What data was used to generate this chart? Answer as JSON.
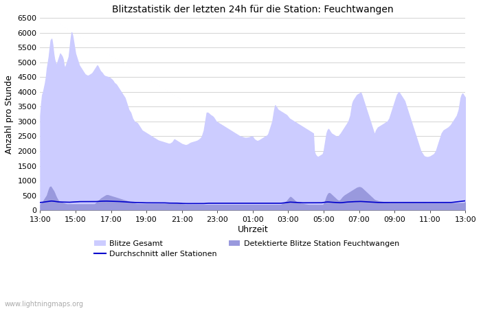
{
  "title": "Blitzstatistik der letzten 24h für die Station: Feuchtwangen",
  "xlabel": "Uhrzeit",
  "ylabel": "Anzahl pro Stunde",
  "watermark": "www.lightningmaps.org",
  "ylim": [
    0,
    6500
  ],
  "yticks": [
    0,
    500,
    1000,
    1500,
    2000,
    2500,
    3000,
    3500,
    4000,
    4500,
    5000,
    5500,
    6000,
    6500
  ],
  "xtick_labels": [
    "13:00",
    "15:00",
    "17:00",
    "19:00",
    "21:00",
    "23:00",
    "01:00",
    "03:00",
    "05:00",
    "07:00",
    "09:00",
    "11:00",
    "13:00"
  ],
  "color_gesamt": "#ccccff",
  "color_station": "#9999dd",
  "color_avg": "#0000cc",
  "legend_gesamt": "Blitze Gesamt",
  "legend_station": "Detektierte Blitze Station Feuchtwangen",
  "legend_avg": "Durchschnitt aller Stationen",
  "gesamt": [
    3200,
    3600,
    3900,
    4000,
    4150,
    4300,
    4500,
    4800,
    5000,
    5200,
    5500,
    5750,
    5800,
    5600,
    5300,
    5100,
    5000,
    4900,
    5000,
    5100,
    5200,
    5300,
    5250,
    5200,
    5100,
    4900,
    4800,
    4900,
    5000,
    5100,
    5200,
    5500,
    5800,
    6020,
    5900,
    5700,
    5500,
    5300,
    5200,
    5100,
    5000,
    4900,
    4850,
    4800,
    4750,
    4700,
    4650,
    4600,
    4580,
    4560,
    4550,
    4560,
    4580,
    4600,
    4620,
    4650,
    4700,
    4750,
    4800,
    4850,
    4900,
    4850,
    4780,
    4720,
    4680,
    4650,
    4600,
    4560,
    4540,
    4530,
    4520,
    4510,
    4500,
    4480,
    4460,
    4430,
    4400,
    4350,
    4300,
    4280,
    4250,
    4200,
    4150,
    4100,
    4050,
    4000,
    3950,
    3900,
    3850,
    3800,
    3700,
    3600,
    3500,
    3400,
    3350,
    3300,
    3200,
    3100,
    3050,
    3000,
    2980,
    2960,
    2950,
    2900,
    2850,
    2800,
    2750,
    2700,
    2680,
    2660,
    2640,
    2620,
    2600,
    2580,
    2560,
    2540,
    2520,
    2500,
    2480,
    2460,
    2440,
    2420,
    2400,
    2380,
    2360,
    2350,
    2340,
    2330,
    2320,
    2310,
    2300,
    2290,
    2280,
    2270,
    2260,
    2250,
    2250,
    2260,
    2280,
    2300,
    2350,
    2400,
    2380,
    2360,
    2340,
    2320,
    2300,
    2280,
    2260,
    2240,
    2230,
    2220,
    2210,
    2200,
    2210,
    2220,
    2240,
    2260,
    2280,
    2290,
    2300,
    2310,
    2320,
    2330,
    2340,
    2350,
    2370,
    2390,
    2420,
    2450,
    2500,
    2600,
    2700,
    2900,
    3100,
    3300,
    3300,
    3280,
    3250,
    3220,
    3200,
    3180,
    3150,
    3100,
    3050,
    3000,
    2980,
    2960,
    2940,
    2920,
    2900,
    2880,
    2860,
    2840,
    2820,
    2800,
    2780,
    2760,
    2740,
    2720,
    2700,
    2680,
    2660,
    2640,
    2620,
    2600,
    2580,
    2560,
    2540,
    2520,
    2500,
    2490,
    2480,
    2470,
    2460,
    2450,
    2450,
    2450,
    2455,
    2460,
    2470,
    2480,
    2490,
    2500,
    2450,
    2400,
    2380,
    2360,
    2340,
    2350,
    2360,
    2380,
    2400,
    2420,
    2440,
    2460,
    2480,
    2500,
    2520,
    2540,
    2600,
    2700,
    2800,
    2900,
    3000,
    3200,
    3400,
    3550,
    3500,
    3450,
    3400,
    3380,
    3360,
    3340,
    3320,
    3300,
    3280,
    3260,
    3240,
    3220,
    3180,
    3140,
    3100,
    3080,
    3060,
    3040,
    3020,
    3000,
    2980,
    2960,
    2940,
    2920,
    2900,
    2880,
    2860,
    2840,
    2820,
    2800,
    2780,
    2760,
    2740,
    2720,
    2700,
    2680,
    2660,
    2640,
    2620,
    2600,
    2000,
    1900,
    1850,
    1820,
    1800,
    1820,
    1840,
    1860,
    1880,
    1900,
    2000,
    2200,
    2400,
    2600,
    2700,
    2750,
    2700,
    2650,
    2600,
    2580,
    2560,
    2540,
    2520,
    2500,
    2490,
    2480,
    2520,
    2560,
    2600,
    2650,
    2700,
    2750,
    2800,
    2850,
    2900,
    2950,
    3000,
    3100,
    3200,
    3400,
    3600,
    3700,
    3750,
    3800,
    3850,
    3900,
    3920,
    3940,
    3960,
    3980,
    3900,
    3800,
    3700,
    3600,
    3500,
    3400,
    3300,
    3200,
    3100,
    3000,
    2900,
    2800,
    2700,
    2600,
    2600,
    2700,
    2750,
    2800,
    2820,
    2840,
    2860,
    2880,
    2900,
    2920,
    2940,
    2960,
    2980,
    3000,
    3050,
    3100,
    3200,
    3300,
    3400,
    3500,
    3600,
    3700,
    3800,
    3900,
    3950,
    4000,
    3950,
    3900,
    3850,
    3800,
    3750,
    3700,
    3600,
    3500,
    3400,
    3300,
    3200,
    3100,
    3000,
    2900,
    2800,
    2700,
    2600,
    2500,
    2400,
    2300,
    2200,
    2100,
    2000,
    1950,
    1900,
    1850,
    1820,
    1810,
    1800,
    1800,
    1800,
    1810,
    1820,
    1840,
    1860,
    1880,
    1900,
    1950,
    2000,
    2100,
    2200,
    2300,
    2400,
    2500,
    2600,
    2650,
    2700,
    2720,
    2740,
    2760,
    2780,
    2800,
    2830,
    2860,
    2900,
    2950,
    3000,
    3050,
    3100,
    3150,
    3200,
    3300,
    3400,
    3600,
    3800,
    3900,
    3950,
    3900,
    3850,
    3800
  ],
  "station": [
    200,
    220,
    260,
    300,
    350,
    400,
    450,
    500,
    600,
    700,
    780,
    800,
    750,
    700,
    650,
    580,
    500,
    430,
    370,
    320,
    290,
    270,
    260,
    250,
    240,
    230,
    220,
    210,
    200,
    200,
    200,
    200,
    200,
    200,
    200,
    200,
    200,
    200,
    200,
    200,
    200,
    200,
    200,
    200,
    200,
    200,
    200,
    200,
    200,
    200,
    200,
    200,
    200,
    200,
    200,
    200,
    200,
    200,
    220,
    250,
    280,
    310,
    340,
    370,
    400,
    420,
    440,
    460,
    480,
    500,
    510,
    510,
    500,
    490,
    480,
    470,
    460,
    450,
    440,
    430,
    420,
    410,
    400,
    390,
    380,
    370,
    360,
    350,
    340,
    330,
    320,
    310,
    300,
    290,
    280,
    270,
    260,
    250,
    240,
    230,
    220,
    215,
    210,
    210,
    210,
    210,
    210,
    210,
    210,
    210,
    210,
    210,
    210,
    210,
    210,
    210,
    210,
    210,
    210,
    210,
    210,
    210,
    210,
    210,
    210,
    210,
    210,
    210,
    210,
    210,
    210,
    210,
    210,
    210,
    210,
    210,
    210,
    210,
    210,
    210,
    210,
    210,
    210,
    210,
    210,
    210,
    210,
    210,
    200,
    200,
    195,
    190,
    185,
    180,
    180,
    180,
    180,
    180,
    180,
    180,
    180,
    180,
    180,
    180,
    180,
    180,
    180,
    180,
    180,
    180,
    180,
    180,
    180,
    180,
    180,
    180,
    180,
    180,
    180,
    180,
    180,
    180,
    180,
    180,
    180,
    180,
    180,
    180,
    180,
    180,
    180,
    180,
    180,
    180,
    180,
    180,
    180,
    180,
    180,
    180,
    180,
    180,
    180,
    180,
    180,
    180,
    180,
    180,
    180,
    180,
    180,
    180,
    180,
    180,
    180,
    180,
    180,
    180,
    180,
    180,
    180,
    180,
    180,
    180,
    180,
    180,
    180,
    180,
    180,
    180,
    180,
    180,
    180,
    180,
    180,
    180,
    180,
    180,
    180,
    180,
    180,
    180,
    180,
    180,
    180,
    180,
    180,
    180,
    180,
    180,
    180,
    180,
    180,
    180,
    200,
    220,
    240,
    260,
    280,
    300,
    340,
    380,
    420,
    450,
    430,
    400,
    370,
    340,
    310,
    290,
    270,
    255,
    240,
    230,
    220,
    215,
    210,
    205,
    200,
    195,
    190,
    185,
    180,
    180,
    180,
    180,
    180,
    180,
    180,
    180,
    180,
    180,
    180,
    180,
    180,
    180,
    180,
    180,
    200,
    260,
    350,
    450,
    520,
    570,
    580,
    560,
    530,
    500,
    470,
    440,
    410,
    380,
    350,
    330,
    320,
    330,
    360,
    400,
    440,
    470,
    500,
    520,
    540,
    560,
    580,
    600,
    620,
    640,
    660,
    680,
    700,
    720,
    740,
    760,
    770,
    780,
    780,
    770,
    750,
    720,
    690,
    660,
    630,
    600,
    570,
    540,
    510,
    480,
    450,
    420,
    390,
    360,
    340,
    330,
    320,
    310,
    300,
    295,
    290,
    285,
    280,
    275,
    270,
    265,
    260,
    255,
    250,
    245,
    240,
    240,
    240,
    240,
    240,
    240,
    240,
    240,
    240,
    240,
    240,
    240,
    240,
    240,
    240,
    240,
    240,
    240,
    240,
    240,
    240,
    240,
    240,
    240,
    240,
    240,
    240,
    240,
    240,
    240,
    240,
    240,
    240,
    240,
    240,
    240,
    240,
    240,
    240,
    240,
    240,
    240,
    240,
    240,
    240,
    240,
    240,
    240,
    240,
    240,
    240,
    240,
    240,
    240,
    240,
    240,
    240,
    240,
    240,
    240,
    240,
    240,
    240,
    240,
    240,
    240,
    240,
    240,
    240,
    240,
    240,
    240,
    240,
    240,
    240,
    240,
    240,
    240,
    250,
    270
  ],
  "avg": [
    260,
    265,
    268,
    270,
    275,
    280,
    285,
    290,
    295,
    300,
    305,
    308,
    310,
    308,
    305,
    300,
    295,
    290,
    285,
    282,
    280,
    278,
    277,
    276,
    275,
    274,
    273,
    272,
    271,
    270,
    270,
    270,
    272,
    274,
    276,
    278,
    280,
    282,
    284,
    286,
    288,
    290,
    290,
    290,
    290,
    290,
    290,
    290,
    290,
    290,
    290,
    290,
    290,
    290,
    290,
    290,
    290,
    290,
    290,
    292,
    295,
    298,
    300,
    302,
    304,
    305,
    306,
    307,
    308,
    308,
    308,
    307,
    306,
    305,
    304,
    303,
    302,
    301,
    300,
    299,
    298,
    297,
    295,
    293,
    291,
    289,
    287,
    285,
    283,
    281,
    279,
    277,
    275,
    273,
    271,
    270,
    268,
    266,
    264,
    262,
    260,
    259,
    258,
    257,
    256,
    255,
    254,
    253,
    252,
    251,
    250,
    250,
    250,
    250,
    250,
    250,
    250,
    250,
    250,
    250,
    250,
    250,
    250,
    250,
    250,
    250,
    250,
    250,
    250,
    250,
    250,
    248,
    246,
    244,
    242,
    240,
    240,
    240,
    240,
    240,
    240,
    240,
    240,
    240,
    238,
    236,
    234,
    232,
    230,
    229,
    228,
    227,
    226,
    225,
    225,
    225,
    225,
    225,
    225,
    225,
    225,
    225,
    225,
    225,
    225,
    225,
    225,
    225,
    225,
    225,
    225,
    225,
    226,
    228,
    230,
    233,
    235,
    235,
    235,
    235,
    235,
    235,
    235,
    235,
    235,
    235,
    235,
    235,
    235,
    235,
    235,
    235,
    235,
    235,
    235,
    235,
    235,
    235,
    235,
    235,
    235,
    235,
    235,
    235,
    235,
    235,
    235,
    235,
    235,
    235,
    235,
    235,
    235,
    235,
    235,
    235,
    235,
    235,
    235,
    235,
    235,
    235,
    235,
    235,
    235,
    235,
    235,
    235,
    235,
    235,
    235,
    235,
    235,
    235,
    235,
    235,
    235,
    235,
    235,
    235,
    235,
    235,
    235,
    235,
    235,
    235,
    235,
    235,
    235,
    235,
    235,
    235,
    235,
    235,
    238,
    242,
    246,
    250,
    254,
    258,
    262,
    266,
    270,
    274,
    272,
    270,
    268,
    266,
    264,
    262,
    260,
    258,
    256,
    254,
    252,
    250,
    250,
    250,
    250,
    250,
    250,
    250,
    250,
    250,
    250,
    250,
    250,
    250,
    250,
    250,
    250,
    250,
    250,
    250,
    250,
    250,
    252,
    256,
    262,
    268,
    273,
    276,
    278,
    278,
    276,
    273,
    270,
    268,
    266,
    264,
    262,
    260,
    258,
    256,
    254,
    253,
    253,
    255,
    258,
    262,
    266,
    270,
    273,
    276,
    278,
    280,
    282,
    284,
    286,
    288,
    289,
    290,
    291,
    292,
    293,
    294,
    295,
    295,
    294,
    292,
    290,
    288,
    286,
    284,
    282,
    280,
    278,
    276,
    274,
    272,
    270,
    268,
    266,
    264,
    263,
    262,
    261,
    260,
    260,
    260,
    260,
    260,
    260,
    260,
    260,
    260,
    260,
    260,
    260,
    260,
    260,
    260,
    260,
    260,
    260,
    260,
    260,
    260,
    260,
    260,
    260,
    260,
    260,
    260,
    260,
    260,
    260,
    260,
    260,
    260,
    260,
    260,
    260,
    260,
    260,
    260,
    260,
    260,
    260,
    260,
    260,
    260,
    260,
    260,
    260,
    260,
    260,
    260,
    260,
    260,
    260,
    260,
    260,
    260,
    260,
    260,
    260,
    260,
    260,
    260,
    260,
    260,
    260,
    260,
    260,
    260,
    260,
    260,
    260,
    260,
    260,
    260,
    262,
    264,
    268,
    272,
    276,
    280,
    284,
    288,
    292,
    296,
    300,
    305,
    310,
    312,
    314,
    316
  ]
}
